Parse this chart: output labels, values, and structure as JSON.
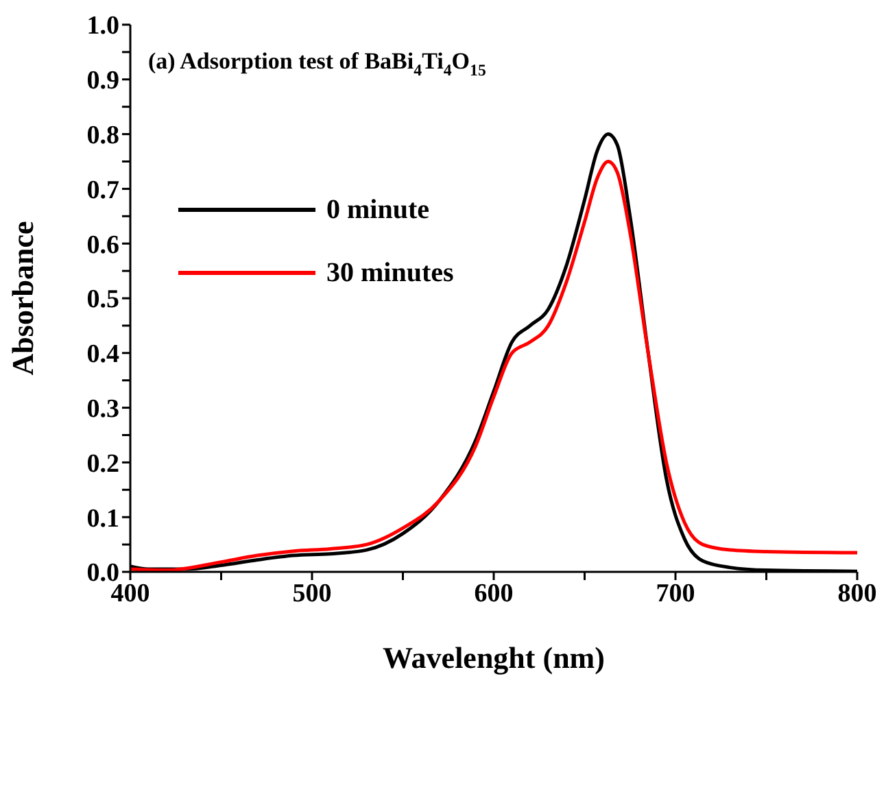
{
  "chart_data": {
    "type": "line",
    "title": "(a)  Adsorption test of BaBi$_{4}$Ti$_{4}$O$_{15}$",
    "xlabel": "Wavelenght (nm)",
    "ylabel": "Absorbance",
    "xlim": [
      400,
      800
    ],
    "xticks": [
      400,
      {
        "value": 450,
        "label": null
      },
      500,
      {
        "value": 550,
        "label": null
      },
      600,
      {
        "value": 650,
        "label": null
      },
      700,
      {
        "value": 750,
        "label": null
      },
      800
    ],
    "ylim": [
      0,
      1
    ],
    "yticks": [
      {
        "value": 0,
        "label": "0.0"
      },
      {
        "value": 0.05,
        "label": null
      },
      0.1,
      {
        "value": 0.15,
        "label": null
      },
      0.2,
      {
        "value": 0.25,
        "label": null
      },
      0.3,
      {
        "value": 0.35,
        "label": null
      },
      0.4,
      {
        "value": 0.45,
        "label": null
      },
      0.5,
      {
        "value": 0.55,
        "label": null
      },
      0.6,
      {
        "value": 0.65,
        "label": null
      },
      0.7,
      {
        "value": 0.75,
        "label": null
      },
      0.8,
      {
        "value": 0.85,
        "label": null
      },
      0.9,
      {
        "value": 0.95,
        "label": null
      },
      {
        "value": 1,
        "label": "1.0"
      }
    ],
    "legend": "top left",
    "marker": "none",
    "line_style": "solid",
    "series": [
      {
        "name": "0 minute",
        "color": "#000000",
        "x": [
          400,
          410,
          430,
          450,
          470,
          490,
          510,
          530,
          550,
          570,
          590,
          600,
          610,
          620,
          630,
          640,
          650,
          657,
          663,
          668,
          675,
          685,
          695,
          705,
          715,
          730,
          750,
          800
        ],
        "values": [
          0.01,
          0.005,
          0.005,
          0.012,
          0.022,
          0.03,
          0.033,
          0.04,
          0.07,
          0.13,
          0.24,
          0.33,
          0.42,
          0.45,
          0.48,
          0.56,
          0.68,
          0.77,
          0.8,
          0.78,
          0.65,
          0.4,
          0.17,
          0.06,
          0.02,
          0.008,
          0.003,
          0.001
        ]
      },
      {
        "name": "30 minutes",
        "color": "#ff0000",
        "x": [
          400,
          420,
          450,
          470,
          490,
          510,
          530,
          550,
          570,
          590,
          600,
          610,
          620,
          630,
          640,
          650,
          657,
          663,
          668,
          675,
          685,
          695,
          705,
          715,
          730,
          750,
          800
        ],
        "values": [
          0.005,
          0.003,
          0.018,
          0.03,
          0.038,
          0.042,
          0.05,
          0.08,
          0.13,
          0.23,
          0.32,
          0.4,
          0.42,
          0.45,
          0.53,
          0.64,
          0.72,
          0.75,
          0.73,
          0.62,
          0.4,
          0.2,
          0.09,
          0.05,
          0.04,
          0.037,
          0.035
        ]
      }
    ]
  }
}
